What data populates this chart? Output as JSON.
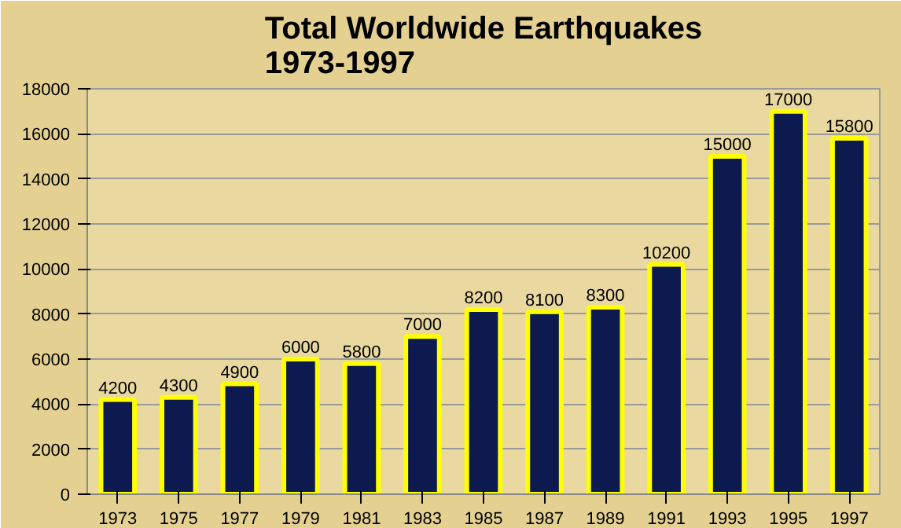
{
  "chart_data": {
    "type": "bar",
    "title": "Total Worldwide Earthquakes\n1973-1997",
    "categories": [
      "1973",
      "1975",
      "1977",
      "1979",
      "1981",
      "1983",
      "1985",
      "1987",
      "1989",
      "1991",
      "1993",
      "1995",
      "1997"
    ],
    "values": [
      4200,
      4300,
      4900,
      6000,
      5800,
      7000,
      8200,
      8100,
      8300,
      10200,
      15000,
      17000,
      15800
    ],
    "color": "#0c1a4f",
    "ylim": [
      0,
      18000
    ],
    "yticks": [
      0,
      2000,
      4000,
      6000,
      8000,
      10000,
      12000,
      14000,
      16000,
      18000
    ],
    "grid": "y",
    "data_labels": true
  }
}
